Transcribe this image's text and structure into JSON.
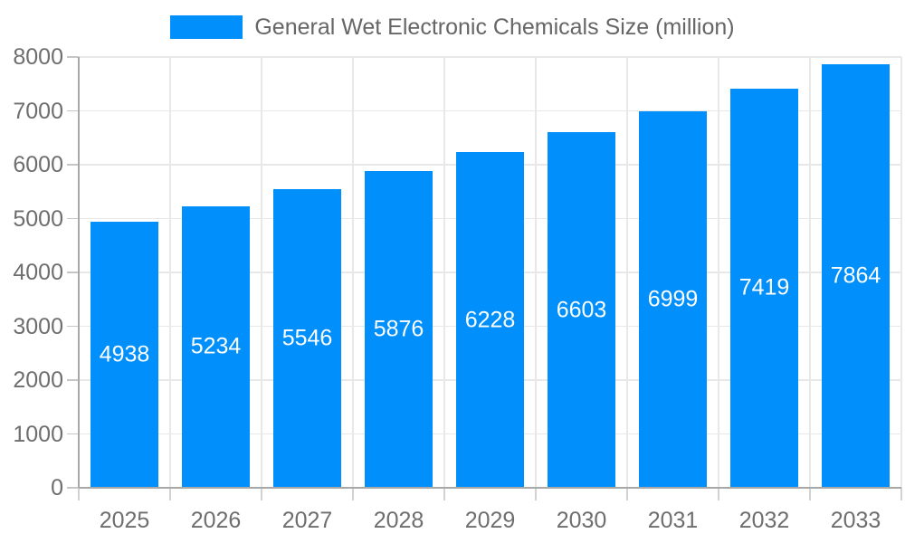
{
  "legend": {
    "label": "General Wet Electronic Chemicals Size (million)"
  },
  "colors": {
    "accent_bar": "#008FFB",
    "bar_value_label": "#ffffff"
  },
  "chart_data": {
    "type": "bar",
    "title": "General Wet Electronic Chemicals Size (million)",
    "categories": [
      "2025",
      "2026",
      "2027",
      "2028",
      "2029",
      "2030",
      "2031",
      "2032",
      "2033"
    ],
    "series": [
      {
        "name": "General Wet Electronic Chemicals Size (million)",
        "values": [
          4938,
          5234,
          5546,
          5876,
          6228,
          6603,
          6999,
          7419,
          7864
        ]
      }
    ],
    "bar_value_labels": [
      "4938",
      "5234",
      "5546",
      "5876",
      "6228",
      "6603",
      "6999",
      "7419",
      "7864"
    ],
    "xlabel": "",
    "ylabel": "",
    "ylim": [
      0,
      8000
    ],
    "yticks": [
      0,
      1000,
      2000,
      3000,
      4000,
      5000,
      6000,
      7000,
      8000
    ],
    "grid": true,
    "legend_position": "top",
    "bar_color": "#008FFB",
    "label_color": "#ffffff"
  }
}
